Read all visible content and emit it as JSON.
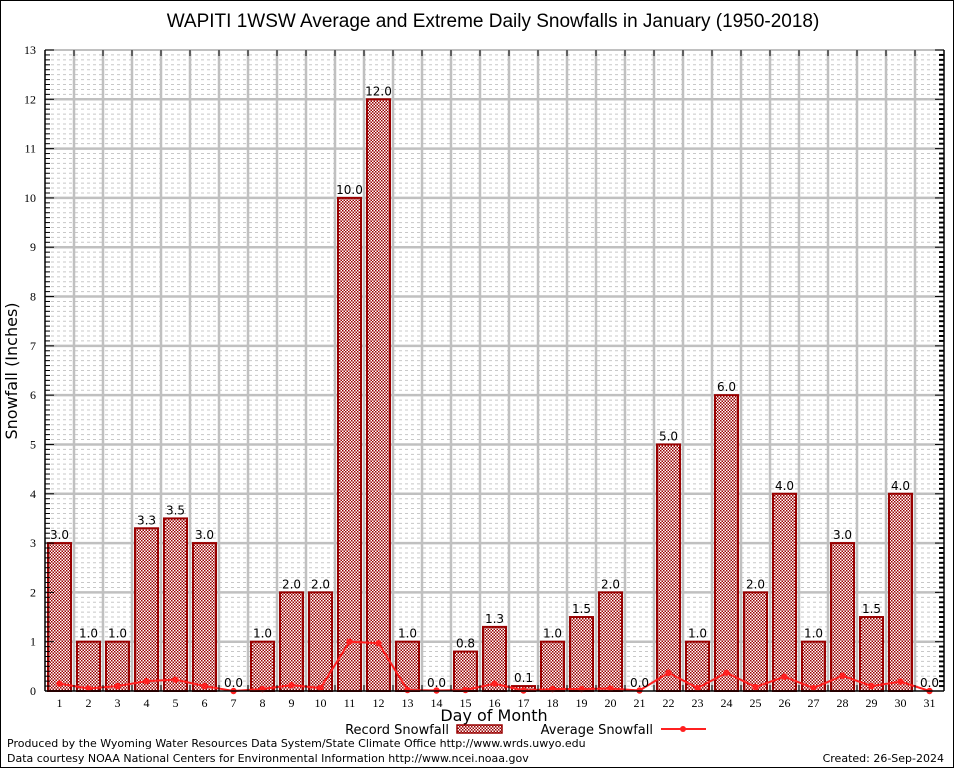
{
  "chart_data": {
    "type": "bar",
    "title": "WAPITI 1WSW Average and Extreme Daily Snowfalls in January (1950-2018)",
    "xlabel": "Day of Month",
    "ylabel": "Snowfall (Inches)",
    "ylim": [
      0,
      13
    ],
    "yticks": [
      "0",
      "1",
      "2",
      "3",
      "4",
      "5",
      "6",
      "7",
      "8",
      "9",
      "10",
      "11",
      "12",
      "13"
    ],
    "grid": true,
    "categories": [
      "1",
      "2",
      "3",
      "4",
      "5",
      "6",
      "7",
      "8",
      "9",
      "10",
      "11",
      "12",
      "13",
      "14",
      "15",
      "16",
      "17",
      "18",
      "19",
      "20",
      "21",
      "22",
      "23",
      "24",
      "25",
      "26",
      "27",
      "28",
      "29",
      "30",
      "31"
    ],
    "series": [
      {
        "name": "Record Snowfall",
        "type": "bar",
        "values": [
          3.0,
          1.0,
          1.0,
          3.3,
          3.5,
          3.0,
          0.0,
          1.0,
          2.0,
          2.0,
          10.0,
          12.0,
          1.0,
          0.0,
          0.8,
          1.3,
          0.1,
          1.0,
          1.5,
          2.0,
          0.0,
          5.0,
          1.0,
          6.0,
          2.0,
          4.0,
          1.0,
          3.0,
          1.5,
          4.0,
          0.0
        ],
        "labels": [
          "3.0",
          "1.0",
          "1.0",
          "3.3",
          "3.5",
          "3.0",
          "0.0",
          "1.0",
          "2.0",
          "2.0",
          "10.0",
          "12.0",
          "1.0",
          "0.0",
          "0.8",
          "1.3",
          "0.1",
          "1.0",
          "1.5",
          "2.0",
          "0.0",
          "5.0",
          "1.0",
          "6.0",
          "2.0",
          "4.0",
          "1.0",
          "3.0",
          "1.5",
          "4.0",
          "0.0"
        ],
        "color": "#990000"
      },
      {
        "name": "Average Snowfall",
        "type": "line",
        "values": [
          0.15,
          0.05,
          0.1,
          0.2,
          0.23,
          0.1,
          0.0,
          0.04,
          0.12,
          0.06,
          1.0,
          0.97,
          0.02,
          0.01,
          0.02,
          0.15,
          0.01,
          0.04,
          0.04,
          0.05,
          0.01,
          0.37,
          0.06,
          0.37,
          0.08,
          0.29,
          0.06,
          0.31,
          0.1,
          0.19,
          0.0
        ],
        "color": "#ff2020"
      }
    ],
    "legend": {
      "position": "bottom"
    }
  },
  "footer": {
    "credit_line_1": "Produced by the Wyoming Water Resources Data System/State Climate Office http://www.wrds.uwyo.edu",
    "credit_line_2": "Data courtesy NOAA National Centers for Environmental Information http://www.ncei.noaa.gov",
    "created": "Created:  26-Sep-2024"
  }
}
